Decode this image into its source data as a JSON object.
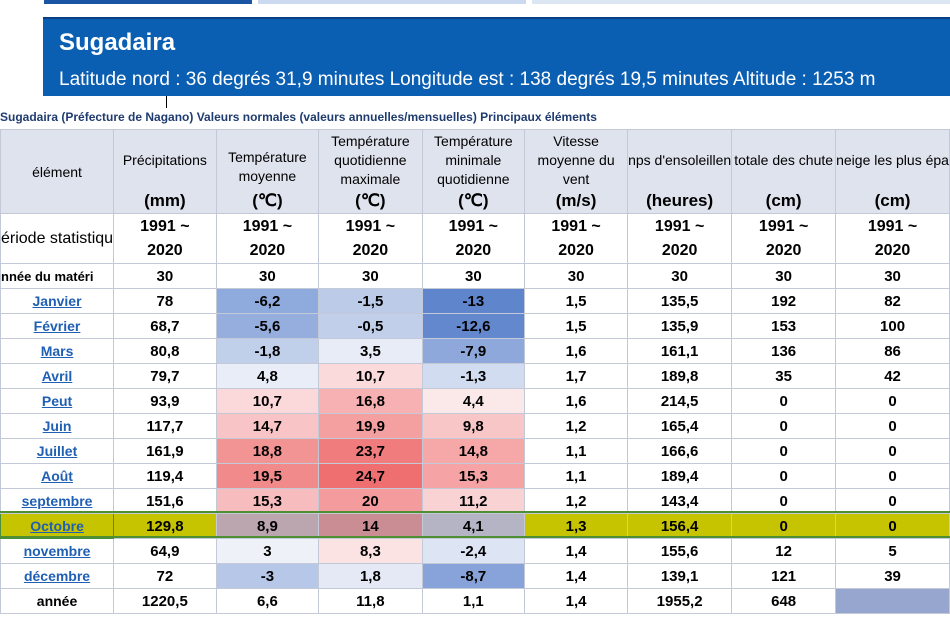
{
  "banner": {
    "title": "Sugadaira",
    "subtitle": "Latitude nord : 36 degrés 31,9 minutes Longitude est : 138 degrés 19,5 minutes Altitude : 1253 m"
  },
  "caption": "Sugadaira (Préfecture de Nagano) Valeurs normales (valeurs annuelles/mensuelles) Principaux éléments",
  "table": {
    "corner_label": "élément",
    "columns": [
      {
        "label": "Précipitations",
        "unit": "(mm)"
      },
      {
        "label": "Température moyenne",
        "unit": "(℃)"
      },
      {
        "label": "Température quotidienne maximale",
        "unit": "(℃)"
      },
      {
        "label": "Température minimale quotidienne",
        "unit": "(℃)"
      },
      {
        "label": "Vitesse moyenne du vent",
        "unit": "(m/s)"
      },
      {
        "label": "nps d'ensoleillen",
        "unit": "(heures)"
      },
      {
        "label": "totale des chute",
        "unit": "(cm)"
      },
      {
        "label": "neige les plus épa",
        "unit": "(cm)"
      }
    ],
    "period_label": "ériode statistiqu",
    "period_value_top": "1991 ~",
    "period_value_bottom": "2020",
    "years_label": "nnée du matéri",
    "years_values": [
      "30",
      "30",
      "30",
      "30",
      "30",
      "30",
      "30",
      "30"
    ],
    "rows": [
      {
        "label": "Janvier",
        "values": [
          "78",
          "-6,2",
          "-1,5",
          "-13",
          "1,5",
          "135,5",
          "192",
          "82"
        ]
      },
      {
        "label": "Février",
        "values": [
          "68,7",
          "-5,6",
          "-0,5",
          "-12,6",
          "1,5",
          "135,9",
          "153",
          "100"
        ]
      },
      {
        "label": "Mars",
        "values": [
          "80,8",
          "-1,8",
          "3,5",
          "-7,9",
          "1,6",
          "161,1",
          "136",
          "86"
        ]
      },
      {
        "label": "Avril",
        "values": [
          "79,7",
          "4,8",
          "10,7",
          "-1,3",
          "1,7",
          "189,8",
          "35",
          "42"
        ]
      },
      {
        "label": "Peut",
        "values": [
          "93,9",
          "10,7",
          "16,8",
          "4,4",
          "1,6",
          "214,5",
          "0",
          "0"
        ]
      },
      {
        "label": "Juin",
        "values": [
          "117,7",
          "14,7",
          "19,9",
          "9,8",
          "1,2",
          "165,4",
          "0",
          "0"
        ]
      },
      {
        "label": "Juillet",
        "values": [
          "161,9",
          "18,8",
          "23,7",
          "14,8",
          "1,1",
          "166,6",
          "0",
          "0"
        ]
      },
      {
        "label": "Août",
        "values": [
          "119,4",
          "19,5",
          "24,7",
          "15,3",
          "1,1",
          "189,4",
          "0",
          "0"
        ]
      },
      {
        "label": "septembre",
        "values": [
          "151,6",
          "15,3",
          "20",
          "11,2",
          "1,2",
          "143,4",
          "0",
          "0"
        ]
      },
      {
        "label": "Octobre",
        "values": [
          "129,8",
          "8,9",
          "14",
          "4,1",
          "1,3",
          "156,4",
          "0",
          "0"
        ]
      },
      {
        "label": "novembre",
        "values": [
          "64,9",
          "3",
          "8,3",
          "-2,4",
          "1,4",
          "155,6",
          "12",
          "5"
        ]
      },
      {
        "label": "décembre",
        "values": [
          "72",
          "-3",
          "1,8",
          "-8,7",
          "1,4",
          "139,1",
          "121",
          "39"
        ]
      }
    ],
    "total": {
      "label": "année",
      "values": [
        "1220,5",
        "6,6",
        "11,8",
        "1,1",
        "1,4",
        "1955,2",
        "648",
        ""
      ]
    },
    "selected_row": "Octobre",
    "colors": {
      "header_bg": "#dfe3ee",
      "selected_row": "#c6c400",
      "link_text": "#1f5fb4",
      "banner_bg": "#0b5fb3"
    }
  }
}
